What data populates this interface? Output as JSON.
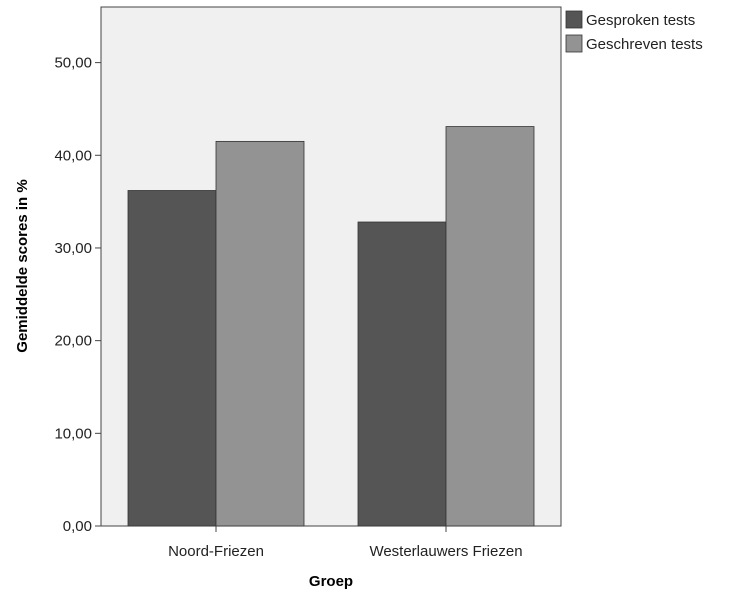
{
  "chart_data": {
    "type": "bar",
    "categories": [
      "Noord-Friezen",
      "Westerlauwers Friezen"
    ],
    "series": [
      {
        "name": "Gesproken tests",
        "values": [
          36.2,
          32.8
        ],
        "color": "#555555"
      },
      {
        "name": "Geschreven tests",
        "values": [
          41.5,
          43.1
        ],
        "color": "#939393"
      }
    ],
    "ylim": [
      0,
      56
    ],
    "yticks": [
      0,
      10,
      20,
      30,
      40,
      50
    ],
    "ytick_labels": [
      "0,00",
      "10,00",
      "20,00",
      "30,00",
      "40,00",
      "50,00"
    ],
    "xlabel": "Groep",
    "ylabel": "Gemiddelde scores in %",
    "plot_background": "#f0f0f0",
    "legend_position": "top-right, outside plot",
    "grid": false
  }
}
